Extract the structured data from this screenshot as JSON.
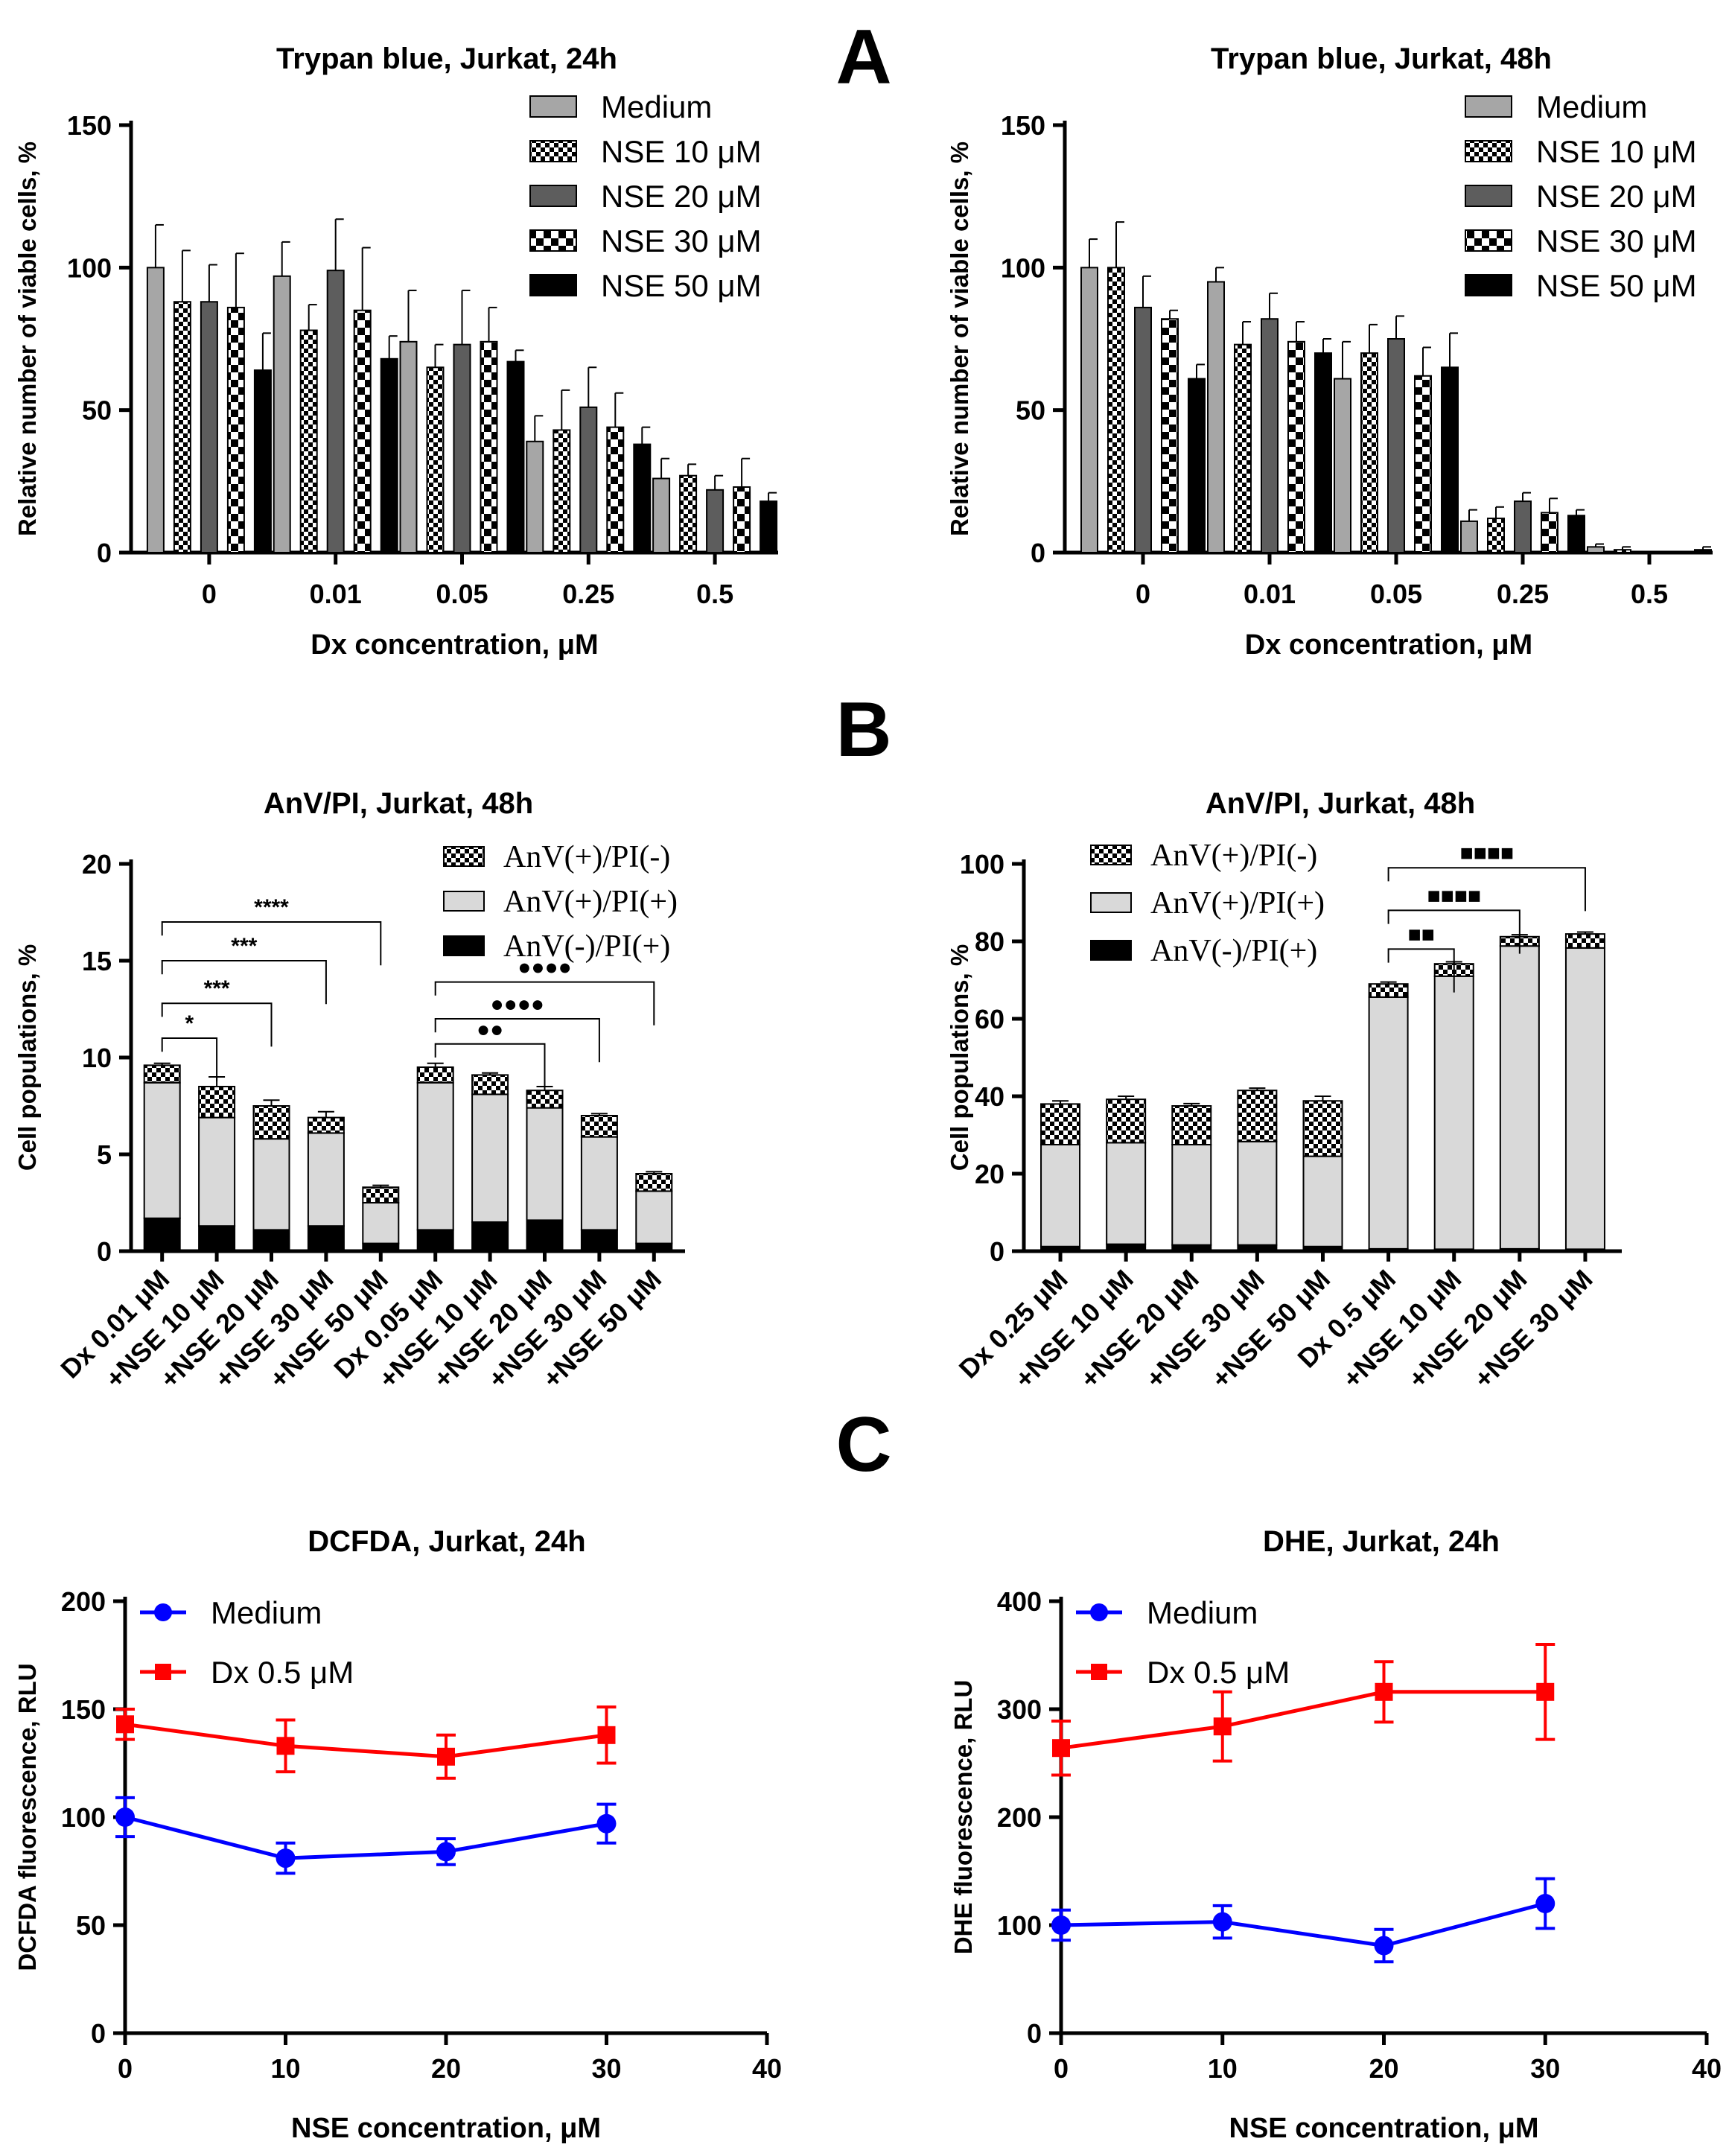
{
  "figure": {
    "panel_letters": [
      "A",
      "B",
      "C"
    ],
    "colors": {
      "medium_gray": "#a6a6a6",
      "dark_gray": "#5d5d5d",
      "black": "#000000",
      "light_gray": "#d9d9d9",
      "blue": "#0000ff",
      "red": "#ff0000"
    }
  },
  "chart_data": [
    {
      "id": "tb24",
      "type": "bar",
      "title": "Trypan blue, Jurkat, 24h",
      "xlabel": "Dx concentration, μM",
      "ylabel": "Relative number of viable cells, %",
      "ylim": [
        0,
        150
      ],
      "yticks": [
        "0",
        "50",
        "100",
        "150"
      ],
      "categories": [
        "0",
        "0.01",
        "0.05",
        "0.25",
        "0.5"
      ],
      "legend_position": "top-right",
      "series": [
        {
          "name": "Medium",
          "pattern": "gray",
          "values": [
            100,
            97,
            74,
            39,
            26
          ],
          "errors": [
            15,
            12,
            18,
            9,
            7
          ]
        },
        {
          "name": "NSE 10 μM",
          "pattern": "dots",
          "values": [
            88,
            78,
            65,
            43,
            27
          ],
          "errors": [
            18,
            9,
            8,
            14,
            4
          ]
        },
        {
          "name": "NSE 20 μM",
          "pattern": "dark",
          "values": [
            88,
            99,
            73,
            51,
            22
          ],
          "errors": [
            13,
            18,
            19,
            14,
            5
          ]
        },
        {
          "name": "NSE 30 μM",
          "pattern": "checker",
          "values": [
            86,
            85,
            74,
            44,
            23
          ],
          "errors": [
            19,
            22,
            12,
            12,
            10
          ]
        },
        {
          "name": "NSE 50 μM",
          "pattern": "black",
          "values": [
            64,
            68,
            67,
            38,
            18
          ],
          "errors": [
            13,
            8,
            4,
            6,
            3
          ]
        }
      ]
    },
    {
      "id": "tb48",
      "type": "bar",
      "title": "Trypan blue, Jurkat, 48h",
      "xlabel": "Dx concentration, μM",
      "ylabel": "Relative number of viable cells, %",
      "ylim": [
        0,
        150
      ],
      "yticks": [
        "0",
        "50",
        "100",
        "150"
      ],
      "categories": [
        "0",
        "0.01",
        "0.05",
        "0.25",
        "0.5"
      ],
      "legend_position": "top-right",
      "series": [
        {
          "name": "Medium",
          "pattern": "gray",
          "values": [
            100,
            95,
            61,
            11,
            2
          ],
          "errors": [
            10,
            5,
            13,
            4,
            1
          ]
        },
        {
          "name": "NSE 10 μM",
          "pattern": "dots",
          "values": [
            100,
            73,
            70,
            12,
            1
          ],
          "errors": [
            16,
            8,
            10,
            4,
            1
          ]
        },
        {
          "name": "NSE 20 μM",
          "pattern": "dark",
          "values": [
            86,
            82,
            75,
            18,
            0
          ],
          "errors": [
            11,
            9,
            8,
            3,
            0
          ]
        },
        {
          "name": "NSE 30 μM",
          "pattern": "checker",
          "values": [
            82,
            74,
            62,
            14,
            0
          ],
          "errors": [
            3,
            7,
            10,
            5,
            0
          ]
        },
        {
          "name": "NSE 50 μM",
          "pattern": "black",
          "values": [
            61,
            70,
            65,
            13,
            1
          ],
          "errors": [
            5,
            5,
            12,
            2,
            1
          ]
        }
      ]
    },
    {
      "id": "anv1",
      "type": "bar",
      "stacked": true,
      "title": "AnV/PI, Jurkat, 48h",
      "ylabel": "Cell populations, %",
      "ylim": [
        0,
        20
      ],
      "yticks": [
        "0",
        "5",
        "10",
        "15",
        "20"
      ],
      "categories": [
        "Dx 0.01 μM",
        "+NSE 10 μM",
        "+NSE 20 μM",
        "+NSE 30 μM",
        "+NSE 50 μM",
        "Dx 0.05 μM",
        "+NSE 10 μM",
        "+NSE 20 μM",
        "+NSE 30 μM",
        "+NSE 50 μM"
      ],
      "legend_position": "top-right",
      "series": [
        {
          "name": "AnV(-)/PI(+)",
          "pattern": "black",
          "values": [
            1.7,
            1.3,
            1.1,
            1.3,
            0.4,
            1.1,
            1.5,
            1.6,
            1.1,
            0.4
          ],
          "errors": [
            0.6,
            0.7,
            0.4,
            0.5,
            0.1,
            0.7,
            0.2,
            0.3,
            0.4,
            0.1
          ]
        },
        {
          "name": "AnV(+)/PI(+)",
          "pattern": "light",
          "values": [
            7.0,
            5.6,
            4.7,
            4.8,
            2.1,
            7.6,
            6.6,
            5.8,
            4.8,
            2.7
          ],
          "errors": [
            0,
            0,
            0,
            0,
            0,
            0,
            0,
            0,
            0,
            0
          ]
        },
        {
          "name": "AnV(+)/PI(-)",
          "pattern": "dots",
          "values": [
            0.9,
            1.6,
            1.7,
            0.8,
            0.8,
            0.8,
            1.0,
            0.9,
            1.1,
            0.9
          ],
          "errors": [
            0.1,
            0.5,
            0.3,
            0.3,
            0.1,
            0.2,
            0.1,
            0.2,
            0.1,
            0.1
          ]
        }
      ],
      "legend_order": [
        "AnV(+)/PI(-)",
        "AnV(+)/PI(+)",
        "AnV(-)/PI(+)"
      ],
      "annotations": [
        {
          "from": 0,
          "to": 1,
          "label": "*",
          "y": 11.0
        },
        {
          "from": 0,
          "to": 2,
          "label": "***",
          "y": 12.8
        },
        {
          "from": 0,
          "to": 3,
          "label": "***",
          "y": 15.0
        },
        {
          "from": 0,
          "to": 4,
          "label": "****",
          "y": 17.0
        },
        {
          "from": 5,
          "to": 7,
          "label": "●●",
          "y": 10.7
        },
        {
          "from": 5,
          "to": 8,
          "label": "●●●●",
          "y": 12.0
        },
        {
          "from": 5,
          "to": 9,
          "label": "●●●●",
          "y": 13.9
        }
      ]
    },
    {
      "id": "anv2",
      "type": "bar",
      "stacked": true,
      "title": "AnV/PI, Jurkat, 48h",
      "ylabel": "Cell populations, %",
      "ylim": [
        0,
        100
      ],
      "yticks": [
        "0",
        "20",
        "40",
        "60",
        "80",
        "100"
      ],
      "categories": [
        "Dx 0.25 μM",
        "+NSE 10 μM",
        "+NSE 20 μM",
        "+NSE 30 μM",
        "+NSE 50 μM",
        "Dx 0.5 μM",
        "+NSE 10 μM",
        "+NSE 20 μM",
        "+NSE 30 μM"
      ],
      "legend_position": "top-left",
      "series": [
        {
          "name": "AnV(-)/PI(+)",
          "pattern": "black",
          "values": [
            1.2,
            1.8,
            1.6,
            1.6,
            1.2,
            0.6,
            0.5,
            0.6,
            0.5
          ],
          "errors": [
            0,
            0,
            0,
            0,
            0,
            0,
            0,
            0,
            0
          ]
        },
        {
          "name": "AnV(+)/PI(+)",
          "pattern": "light",
          "values": [
            26.3,
            26.2,
            25.9,
            26.7,
            23.3,
            65.0,
            70.5,
            78.2,
            77.8
          ],
          "errors": [
            0,
            0,
            0,
            0,
            0,
            0,
            0,
            0,
            0
          ]
        },
        {
          "name": "AnV(+)/PI(-)",
          "pattern": "dots",
          "values": [
            10.5,
            11.2,
            10.0,
            13.2,
            14.3,
            3.4,
            3.2,
            2.4,
            3.6
          ],
          "errors": [
            0.8,
            0.8,
            0.6,
            0.6,
            1.2,
            0.5,
            0.5,
            0.5,
            0.5
          ]
        }
      ],
      "legend_order": [
        "AnV(+)/PI(-)",
        "AnV(+)/PI(+)",
        "AnV(-)/PI(+)"
      ],
      "annotations": [
        {
          "from": 5,
          "to": 6,
          "label": "■■",
          "y": 78
        },
        {
          "from": 5,
          "to": 7,
          "label": "■■■■",
          "y": 88
        },
        {
          "from": 5,
          "to": 8,
          "label": "■■■■",
          "y": 99
        }
      ]
    },
    {
      "id": "dcfda",
      "type": "line",
      "title": "DCFDA, Jurkat, 24h",
      "xlabel": "NSE concentration, μM",
      "ylabel": "DCFDA fluorescence, RLU",
      "xlim": [
        0,
        40
      ],
      "ylim": [
        0,
        200
      ],
      "xticks": [
        "0",
        "10",
        "20",
        "30",
        "40"
      ],
      "yticks": [
        "0",
        "50",
        "100",
        "150",
        "200"
      ],
      "legend_position": "top-left",
      "series": [
        {
          "name": "Medium",
          "color": "#0000ff",
          "marker": "circle",
          "x": [
            0,
            10,
            20,
            30
          ],
          "y": [
            100,
            81,
            84,
            97
          ],
          "errors": [
            9,
            7,
            6,
            9
          ]
        },
        {
          "name": "Dx 0.5 μM",
          "color": "#ff0000",
          "marker": "square",
          "x": [
            0,
            10,
            20,
            30
          ],
          "y": [
            143,
            133,
            128,
            138
          ],
          "errors": [
            7,
            12,
            10,
            13
          ]
        }
      ]
    },
    {
      "id": "dhe",
      "type": "line",
      "title": "DHE, Jurkat, 24h",
      "xlabel": "NSE concentration, μM",
      "ylabel": "DHE fluorescence, RLU",
      "xlim": [
        0,
        40
      ],
      "ylim": [
        0,
        400
      ],
      "xticks": [
        "0",
        "10",
        "20",
        "30",
        "40"
      ],
      "yticks": [
        "0",
        "100",
        "200",
        "300",
        "400"
      ],
      "legend_position": "top-left",
      "series": [
        {
          "name": "Medium",
          "color": "#0000ff",
          "marker": "circle",
          "x": [
            0,
            10,
            20,
            30
          ],
          "y": [
            100,
            103,
            81,
            120
          ],
          "errors": [
            14,
            15,
            15,
            23
          ]
        },
        {
          "name": "Dx 0.5 μM",
          "color": "#ff0000",
          "marker": "square",
          "x": [
            0,
            10,
            20,
            30
          ],
          "y": [
            264,
            284,
            316,
            316
          ],
          "errors": [
            25,
            32,
            28,
            44
          ]
        }
      ]
    }
  ]
}
